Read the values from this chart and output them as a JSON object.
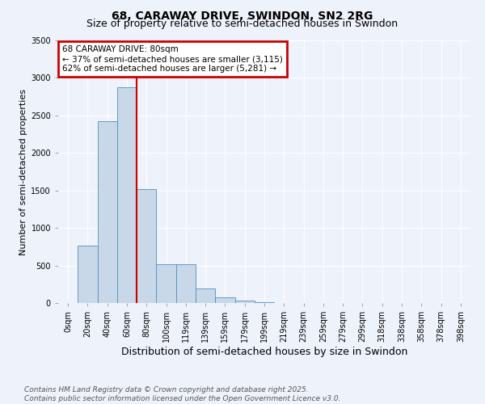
{
  "title": "68, CARAWAY DRIVE, SWINDON, SN2 2RG",
  "subtitle": "Size of property relative to semi-detached houses in Swindon",
  "xlabel": "Distribution of semi-detached houses by size in Swindon",
  "ylabel": "Number of semi-detached properties",
  "annotation_title": "68 CARAWAY DRIVE: 80sqm",
  "annotation_line1": "← 37% of semi-detached houses are smaller (3,115)",
  "annotation_line2": "62% of semi-detached houses are larger (5,281) →",
  "footer_line1": "Contains HM Land Registry data © Crown copyright and database right 2025.",
  "footer_line2": "Contains public sector information licensed under the Open Government Licence v3.0.",
  "bar_labels": [
    "0sqm",
    "20sqm",
    "40sqm",
    "60sqm",
    "80sqm",
    "100sqm",
    "119sqm",
    "139sqm",
    "159sqm",
    "179sqm",
    "199sqm",
    "219sqm",
    "239sqm",
    "259sqm",
    "279sqm",
    "299sqm",
    "318sqm",
    "338sqm",
    "358sqm",
    "378sqm",
    "398sqm"
  ],
  "bar_values": [
    5,
    760,
    2420,
    2880,
    1520,
    520,
    520,
    190,
    80,
    30,
    10,
    5,
    5,
    2,
    2,
    1,
    1,
    1,
    0,
    0,
    0
  ],
  "bar_color": "#c8d8e8",
  "bar_edge_color": "#5090c0",
  "ylim": [
    0,
    3500
  ],
  "yticks": [
    0,
    500,
    1000,
    1500,
    2000,
    2500,
    3000,
    3500
  ],
  "background_color": "#eef2fb",
  "grid_color": "#ffffff",
  "annotation_box_facecolor": "#ffffff",
  "annotation_box_edgecolor": "#cc0000",
  "vline_color": "#cc0000",
  "vline_x": 3.5,
  "title_fontsize": 10,
  "subtitle_fontsize": 9,
  "ylabel_fontsize": 8,
  "xlabel_fontsize": 9,
  "tick_fontsize": 7,
  "annotation_fontsize": 7.5,
  "footer_fontsize": 6.5
}
